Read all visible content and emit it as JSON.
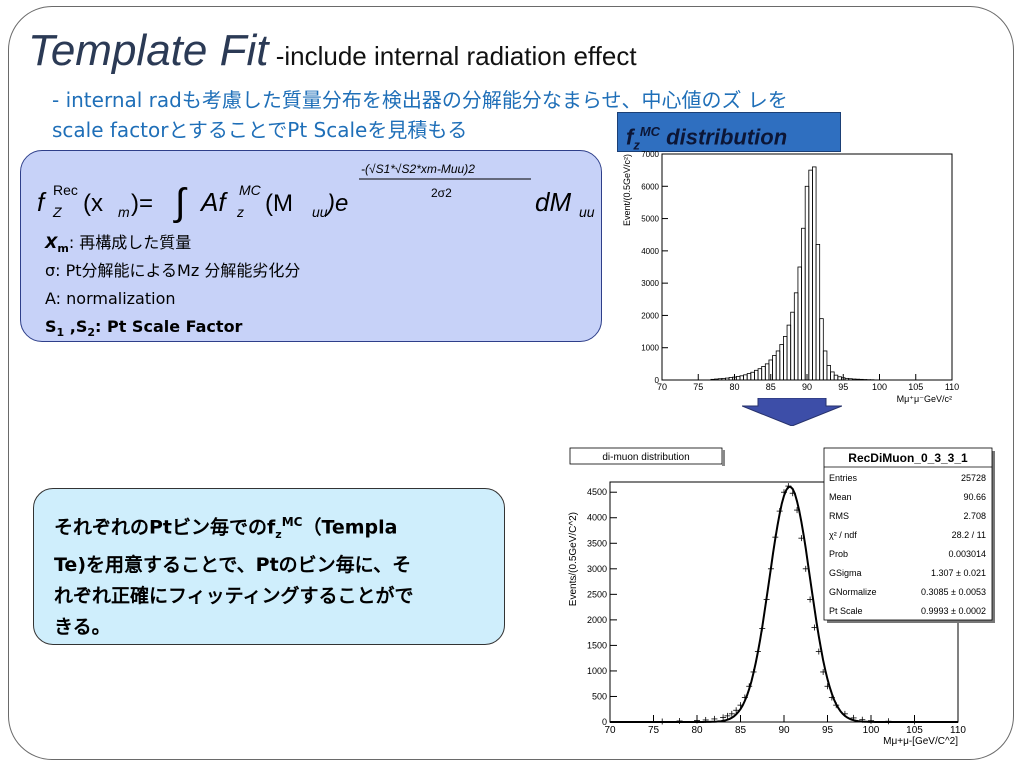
{
  "title": {
    "main": "Template Fit",
    "sub": " -include internal radiation effect"
  },
  "intro": {
    "line1": "- internal radも考慮した質量分布を検出器の分解能分なまらせ、中心値のズ レを",
    "line2": "scale factorとすることでPt Scaleを見積もる"
  },
  "mc_label": {
    "f": "f",
    "sub": "z",
    "sup": "MC",
    "rest": " distribution"
  },
  "formula": {
    "lhs_f": "f",
    "lhs_sup": "Rec",
    "lhs_sub": "Z",
    "lhs_arg": "(x",
    "lhs_arg_sub": "m",
    "eq": ")=",
    "integral": "∫",
    "A": "Af",
    "f_sup": "MC",
    "f_sub": "z",
    "m_arg": "(M",
    "m_sub": "uu",
    "e": ")e",
    "exp_num": "-(√S1*√S2*xm-Muu)2",
    "exp_den": "2σ2",
    "dM": "dM",
    "dM_sub": "uu"
  },
  "definitions": {
    "xm_sym": "X",
    "xm_sub": "m",
    "xm_text": ": 再構成した質量",
    "sigma_text": "σ: Pt分解能によるMz 分解能劣化分",
    "a_text": "A: normalization",
    "s_sym1": "S",
    "s_sub1": "1",
    "s_sep": " ,S",
    "s_sub2": "2",
    "s_text": ": Pt Scale Factor"
  },
  "note": {
    "l1a": "それぞれのPtビン毎でのf",
    "l1sub": "z",
    "l1sup": "MC",
    "l1b": "（Templa",
    "l2": "Te)を用意することで、Ptのビン毎に、そ",
    "l3": "れぞれ正確にフィッティングすることがで",
    "l4": "きる。"
  },
  "chart_data": [
    {
      "type": "bar",
      "xlabel": "Mμ⁺μ⁻GeV/c²",
      "ylabel": "Event/(0.5GeV/c²)",
      "xlim": [
        70,
        110
      ],
      "ylim": [
        0,
        7000
      ],
      "xticks": [
        70,
        75,
        80,
        85,
        90,
        95,
        100,
        105,
        110
      ],
      "yticks": [
        0,
        1000,
        2000,
        3000,
        4000,
        5000,
        6000,
        7000
      ],
      "bin_width": 0.5,
      "x": [
        77,
        77.5,
        78,
        78.5,
        79,
        79.5,
        80,
        80.5,
        81,
        81.5,
        82,
        82.5,
        83,
        83.5,
        84,
        84.5,
        85,
        85.5,
        86,
        86.5,
        87,
        87.5,
        88,
        88.5,
        89,
        89.5,
        90,
        90.5,
        91,
        91.5,
        92,
        92.5,
        93,
        93.5,
        94,
        94.5,
        95,
        95.5,
        96,
        96.5,
        97,
        97.5,
        98,
        98.5,
        99
      ],
      "values": [
        20,
        30,
        40,
        50,
        60,
        80,
        90,
        110,
        130,
        160,
        200,
        240,
        300,
        350,
        420,
        500,
        620,
        760,
        900,
        1100,
        1350,
        1700,
        2100,
        2700,
        3500,
        4700,
        6000,
        6500,
        6600,
        4200,
        1900,
        900,
        450,
        250,
        150,
        100,
        70,
        50,
        40,
        30,
        25,
        20,
        15,
        10,
        8
      ]
    },
    {
      "type": "scatter",
      "title": "di-muon distribution",
      "xlabel": "Mμ+μ-[GeV/C^2]",
      "ylabel": "Events/(0.5GeV/C^2)",
      "xlim": [
        70,
        110
      ],
      "ylim": [
        0,
        4700
      ],
      "xticks": [
        70,
        75,
        80,
        85,
        90,
        95,
        100,
        105,
        110
      ],
      "yticks": [
        0,
        500,
        1000,
        1500,
        2000,
        2500,
        3000,
        3500,
        4000,
        4500
      ],
      "points_x": [
        76,
        78,
        80,
        81,
        82,
        83,
        83.5,
        84,
        84.5,
        85,
        85.5,
        86,
        86.5,
        87,
        87.5,
        88,
        88.5,
        89,
        89.5,
        90,
        90.5,
        91,
        91.5,
        92,
        92.5,
        93,
        93.5,
        94,
        94.5,
        95,
        95.5,
        96,
        97,
        98,
        99,
        100,
        102,
        105
      ],
      "points_y": [
        10,
        20,
        30,
        40,
        60,
        90,
        120,
        160,
        230,
        330,
        480,
        700,
        980,
        1380,
        1830,
        2400,
        3000,
        3620,
        4130,
        4500,
        4620,
        4480,
        4150,
        3600,
        3000,
        2400,
        1850,
        1380,
        980,
        700,
        480,
        330,
        160,
        80,
        45,
        25,
        15,
        10
      ],
      "fit_mean": 90.66,
      "fit_sigma": 2.35,
      "fit_peak": 4610,
      "stats": {
        "name": "RecDiMuon_0_3_3_1",
        "rows": [
          {
            "k": "Entries",
            "v": "25728"
          },
          {
            "k": "Mean",
            "v": "90.66"
          },
          {
            "k": "RMS",
            "v": "2.708"
          },
          {
            "k": "χ² / ndf",
            "v": "28.2 / 11"
          },
          {
            "k": "Prob",
            "v": "0.003014"
          },
          {
            "k": "GSigma",
            "v": "1.307 ± 0.021"
          },
          {
            "k": "GNormalize",
            "v": "0.3085 ± 0.0053"
          },
          {
            "k": "Pt Scale",
            "v": "0.9993 ± 0.0002"
          }
        ]
      }
    }
  ],
  "colors": {
    "title": "#2b3a55",
    "intro": "#1f6fb8",
    "mc_label_bg": "#2f6fc0",
    "formula_bg": "#c7d2f8",
    "note_bg": "#cfeefc",
    "arrow": "#3d4ea8"
  }
}
